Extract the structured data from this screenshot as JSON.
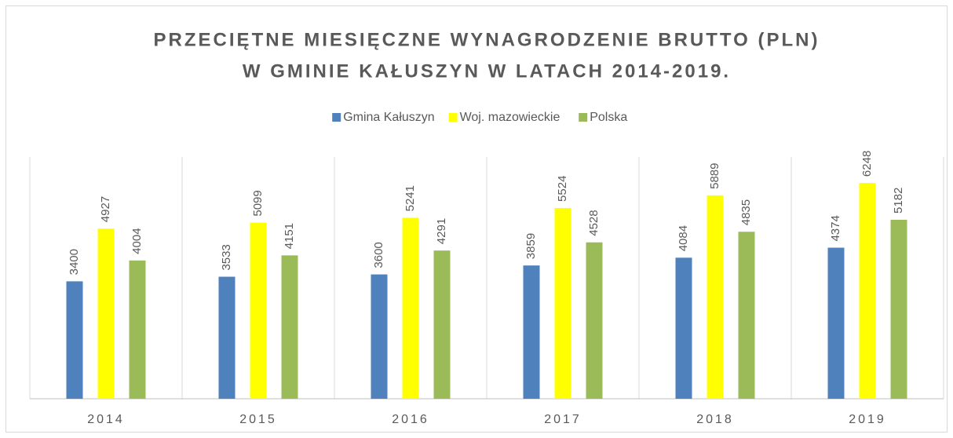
{
  "chart_data": {
    "type": "bar",
    "title": [
      "PRZECIĘTNE MIESIĘCZNE WYNAGRODZENIE BRUTTO (PLN)",
      "W GMINIE KAŁUSZYN W LATACH 2014-2019."
    ],
    "categories": [
      "2014",
      "2015",
      "2016",
      "2017",
      "2018",
      "2019"
    ],
    "series": [
      {
        "name": "Gmina Kałuszyn",
        "color": "#4f81bd",
        "values": [
          3400,
          3533,
          3600,
          3859,
          4084,
          4374
        ]
      },
      {
        "name": "Woj. mazowieckie",
        "color": "#ffff00",
        "values": [
          4927,
          5099,
          5241,
          5524,
          5889,
          6248
        ]
      },
      {
        "name": "Polska",
        "color": "#9bbb59",
        "values": [
          4004,
          4151,
          4291,
          4528,
          4835,
          5182
        ]
      }
    ],
    "ylim": [
      0,
      7000
    ],
    "legend": "top"
  }
}
